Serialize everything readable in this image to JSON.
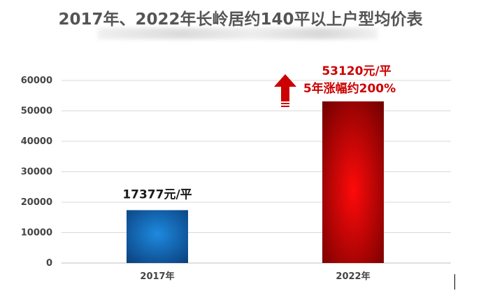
{
  "chart_data": {
    "type": "bar",
    "title": "2017年、2022年长岭居约140平以上户型均价表",
    "categories": [
      "2017年",
      "2022年"
    ],
    "values": [
      17377,
      53120
    ],
    "data_labels": [
      "17377元/平",
      "53120元/平"
    ],
    "annotation": "5年涨幅约200%",
    "ylim": [
      0,
      60000
    ],
    "yticks": [
      0,
      10000,
      20000,
      30000,
      40000,
      50000,
      60000
    ],
    "grid": true,
    "legend": "none",
    "colors": {
      "bar_2017": "#0a6fc2",
      "bar_2017_dark": "#0a3e7a",
      "bar_2022": "#e00000",
      "bar_2022_dark": "#7a0000",
      "annotation": "#cc0000",
      "grid": "#d9d9d9"
    }
  }
}
